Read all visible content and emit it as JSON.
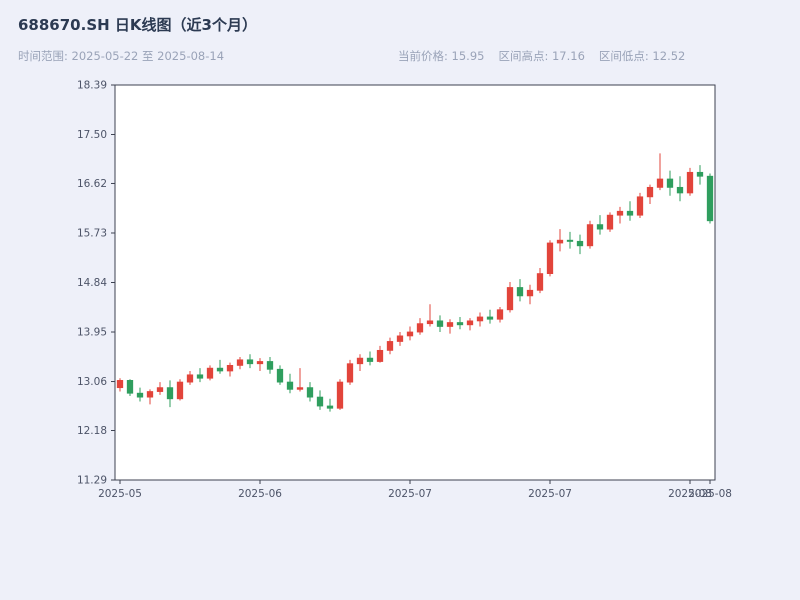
{
  "header": {
    "title": "688670.SH 日K线图（近3个月）",
    "date_range": "时间范围: 2025-05-22 至 2025-08-14",
    "current_price": "当前价格: 15.95",
    "range_high": "区间高点: 17.16",
    "range_low": "区间低点: 12.52"
  },
  "chart_data": {
    "type": "candlestick",
    "title": "688670.SH 日K线图（近3个月）",
    "xlabel": "",
    "ylabel": "",
    "ylim": [
      11.29,
      18.39
    ],
    "grid": false,
    "legend": "none",
    "y_ticks": [
      "18.39",
      "17.50",
      "16.62",
      "15.73",
      "14.84",
      "13.95",
      "13.06",
      "12.18",
      "11.29"
    ],
    "x_ticks": [
      {
        "index": 0,
        "label": "2025-05"
      },
      {
        "index": 14,
        "label": "2025-06"
      },
      {
        "index": 29,
        "label": "2025-07"
      },
      {
        "index": 43,
        "label": "2025-07"
      },
      {
        "index": 57,
        "label": "2025-08"
      },
      {
        "index": 59,
        "label": "2025-08"
      }
    ],
    "colors": {
      "up": "#e2443b",
      "down": "#2f9e5e",
      "axis": "#3c4150",
      "tick_text": "#4d5468",
      "plot_bg": "#ffffff",
      "page_bg": "#eef0f9"
    },
    "ohlc_columns": [
      "date",
      "open",
      "high",
      "low",
      "close"
    ],
    "series": [
      [
        "2025-05-22",
        12.95,
        13.12,
        12.88,
        13.08
      ],
      [
        "2025-05-23",
        13.08,
        13.1,
        12.8,
        12.85
      ],
      [
        "2025-05-26",
        12.85,
        12.95,
        12.7,
        12.78
      ],
      [
        "2025-05-27",
        12.78,
        12.92,
        12.65,
        12.88
      ],
      [
        "2025-05-28",
        12.88,
        13.05,
        12.82,
        12.95
      ],
      [
        "2025-05-29",
        12.95,
        13.08,
        12.6,
        12.75
      ],
      [
        "2025-05-30",
        12.75,
        13.1,
        12.72,
        13.05
      ],
      [
        "2025-06-03",
        13.05,
        13.25,
        13.0,
        13.18
      ],
      [
        "2025-06-04",
        13.18,
        13.3,
        13.05,
        13.12
      ],
      [
        "2025-06-05",
        13.12,
        13.35,
        13.08,
        13.3
      ],
      [
        "2025-06-06",
        13.3,
        13.45,
        13.2,
        13.25
      ],
      [
        "2025-06-09",
        13.25,
        13.4,
        13.15,
        13.35
      ],
      [
        "2025-06-10",
        13.35,
        13.5,
        13.28,
        13.45
      ],
      [
        "2025-06-11",
        13.45,
        13.55,
        13.3,
        13.38
      ],
      [
        "2025-06-12",
        13.38,
        13.48,
        13.25,
        13.42
      ],
      [
        "2025-06-13",
        13.42,
        13.5,
        13.2,
        13.28
      ],
      [
        "2025-06-16",
        13.28,
        13.35,
        13.0,
        13.05
      ],
      [
        "2025-06-17",
        13.05,
        13.2,
        12.85,
        12.92
      ],
      [
        "2025-06-18",
        12.92,
        13.3,
        12.88,
        12.95
      ],
      [
        "2025-06-19",
        12.95,
        13.05,
        12.7,
        12.78
      ],
      [
        "2025-06-20",
        12.78,
        12.9,
        12.55,
        12.62
      ],
      [
        "2025-06-23",
        12.62,
        12.75,
        12.52,
        12.58
      ],
      [
        "2025-06-24",
        12.58,
        13.1,
        12.55,
        13.05
      ],
      [
        "2025-06-25",
        13.05,
        13.45,
        13.0,
        13.38
      ],
      [
        "2025-06-26",
        13.38,
        13.55,
        13.25,
        13.48
      ],
      [
        "2025-06-27",
        13.48,
        13.6,
        13.35,
        13.42
      ],
      [
        "2025-06-30",
        13.42,
        13.7,
        13.4,
        13.62
      ],
      [
        "2025-07-01",
        13.62,
        13.85,
        13.55,
        13.78
      ],
      [
        "2025-07-02",
        13.78,
        13.95,
        13.7,
        13.88
      ],
      [
        "2025-07-03",
        13.88,
        14.05,
        13.8,
        13.95
      ],
      [
        "2025-07-04",
        13.95,
        14.2,
        13.9,
        14.1
      ],
      [
        "2025-07-07",
        14.1,
        14.45,
        14.05,
        14.15
      ],
      [
        "2025-07-08",
        14.15,
        14.25,
        13.95,
        14.05
      ],
      [
        "2025-07-09",
        14.05,
        14.18,
        13.92,
        14.12
      ],
      [
        "2025-07-10",
        14.12,
        14.22,
        14.0,
        14.08
      ],
      [
        "2025-07-11",
        14.08,
        14.2,
        13.98,
        14.15
      ],
      [
        "2025-07-14",
        14.15,
        14.3,
        14.05,
        14.22
      ],
      [
        "2025-07-15",
        14.22,
        14.35,
        14.1,
        14.18
      ],
      [
        "2025-07-16",
        14.18,
        14.4,
        14.12,
        14.35
      ],
      [
        "2025-07-17",
        14.35,
        14.85,
        14.3,
        14.75
      ],
      [
        "2025-07-18",
        14.75,
        14.9,
        14.5,
        14.6
      ],
      [
        "2025-07-21",
        14.6,
        14.8,
        14.45,
        14.7
      ],
      [
        "2025-07-22",
        14.7,
        15.1,
        14.65,
        15.0
      ],
      [
        "2025-07-23",
        15.0,
        15.6,
        14.95,
        15.55
      ],
      [
        "2025-07-24",
        15.55,
        15.8,
        15.4,
        15.6
      ],
      [
        "2025-07-25",
        15.6,
        15.75,
        15.45,
        15.58
      ],
      [
        "2025-07-28",
        15.58,
        15.7,
        15.35,
        15.5
      ],
      [
        "2025-07-29",
        15.5,
        15.95,
        15.45,
        15.88
      ],
      [
        "2025-07-30",
        15.88,
        16.05,
        15.7,
        15.8
      ],
      [
        "2025-07-31",
        15.8,
        16.1,
        15.75,
        16.05
      ],
      [
        "2025-08-01",
        16.05,
        16.2,
        15.9,
        16.12
      ],
      [
        "2025-08-04",
        16.12,
        16.3,
        15.95,
        16.05
      ],
      [
        "2025-08-05",
        16.05,
        16.45,
        16.0,
        16.38
      ],
      [
        "2025-08-06",
        16.38,
        16.6,
        16.25,
        16.55
      ],
      [
        "2025-08-07",
        16.55,
        17.16,
        16.5,
        16.7
      ],
      [
        "2025-08-08",
        16.7,
        16.85,
        16.4,
        16.55
      ],
      [
        "2025-08-11",
        16.55,
        16.75,
        16.3,
        16.45
      ],
      [
        "2025-08-12",
        16.45,
        16.9,
        16.4,
        16.82
      ],
      [
        "2025-08-13",
        16.82,
        16.95,
        16.6,
        16.75
      ],
      [
        "2025-08-14",
        16.75,
        16.8,
        15.9,
        15.95
      ]
    ]
  }
}
